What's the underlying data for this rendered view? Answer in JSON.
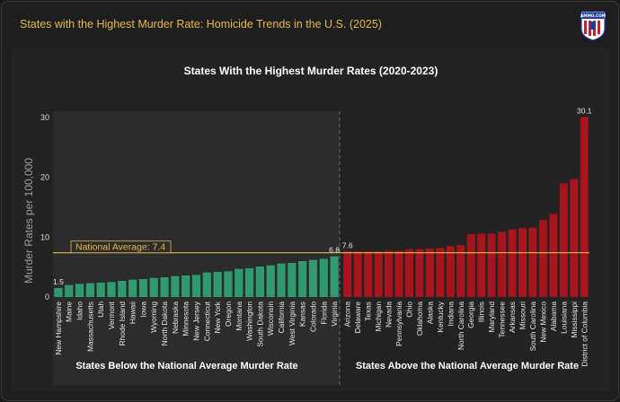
{
  "header": {
    "title": "States with the Highest Murder Rate: Homicide Trends in the U.S. (2025)",
    "logo_text": "AMMO.COM",
    "logo_colors": {
      "blue": "#1f3f9a",
      "red": "#c8202a",
      "white": "#ffffff"
    }
  },
  "colors": {
    "background": "#1e1e1e",
    "panel": "#232323",
    "below_panel": "#2c2c2c",
    "below_bar": "#2f9a6f",
    "above_bar": "#a8141c",
    "national_line": "#e8b84a",
    "header_text": "#e8b84a"
  },
  "chart_data": {
    "type": "bar",
    "title": "States With the Highest Murder Rates (2020-2023)",
    "ylabel": "Murder Rates per 100,000",
    "ylim": [
      0,
      30
    ],
    "yticks": [
      0,
      10,
      20,
      30
    ],
    "national_average": {
      "label": "National Average: 7.4",
      "value": 7.4
    },
    "groups": [
      {
        "name": "States Below the National Average Murder Rate",
        "categories": [
          "New Hampshire",
          "Maine",
          "Idaho",
          "Massachusetts",
          "Utah",
          "Vermont",
          "Rhode Island",
          "Hawaii",
          "Iowa",
          "Wyoming",
          "North Dakota",
          "Nebraska",
          "Minnesota",
          "New Jersey",
          "Connecticut",
          "New York",
          "Oregon",
          "Montana",
          "Washington",
          "South Dakota",
          "Wisconsin",
          "California",
          "West Virginia",
          "Kansas",
          "Colorado",
          "Florida",
          "Virginia"
        ],
        "values": [
          1.5,
          2.0,
          2.2,
          2.3,
          2.4,
          2.5,
          2.7,
          2.9,
          3.0,
          3.2,
          3.3,
          3.5,
          3.6,
          3.7,
          4.1,
          4.2,
          4.3,
          4.7,
          4.8,
          5.1,
          5.3,
          5.6,
          5.7,
          6.0,
          6.2,
          6.4,
          6.8
        ],
        "data_labels": {
          "New Hampshire": "1.5",
          "Virginia": "6.8"
        }
      },
      {
        "name": "States Above the National Average Murder Rate",
        "categories": [
          "Arizona",
          "Delaware",
          "Texas",
          "Michigan",
          "Nevada",
          "Pennsylvania",
          "Ohio",
          "Oklahoma",
          "Alaska",
          "Kentucky",
          "Indiana",
          "North Carolina",
          "Georgia",
          "Illinois",
          "Maryland",
          "Tennessee",
          "Arkansas",
          "Missouri",
          "South Carolina",
          "New Mexico",
          "Alabama",
          "Louisiana",
          "Mississippi",
          "District of Columbia"
        ],
        "values": [
          7.6,
          7.6,
          7.6,
          7.6,
          7.7,
          7.7,
          8.0,
          8.0,
          8.1,
          8.2,
          8.5,
          8.7,
          10.5,
          10.6,
          10.6,
          10.9,
          11.3,
          11.5,
          11.6,
          12.9,
          13.9,
          19.0,
          19.7,
          30.1
        ],
        "data_labels": {
          "Arizona": "7.6",
          "District of Columbia": "30.1"
        }
      }
    ]
  }
}
